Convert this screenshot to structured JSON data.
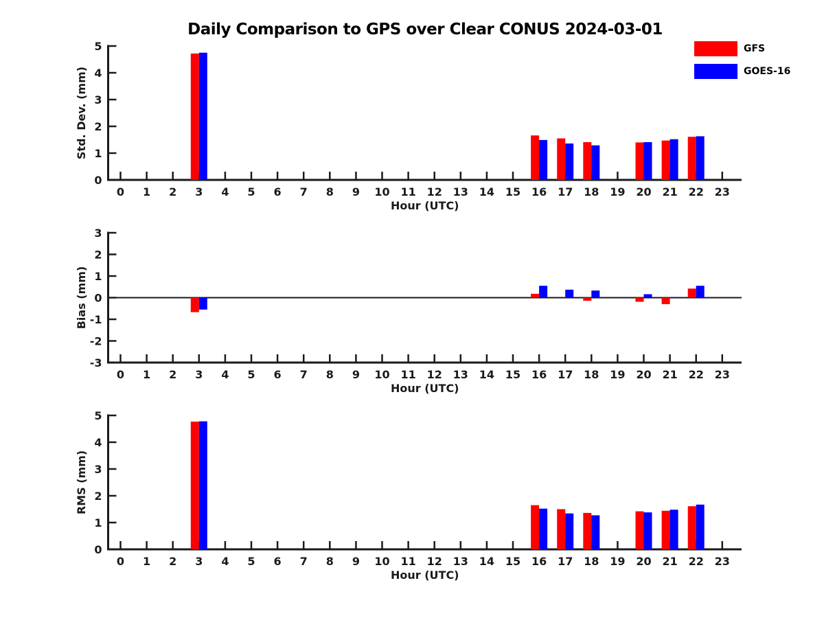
{
  "title": "Daily Comparison to GPS over Clear CONUS 2024-03-01",
  "legend": {
    "items": [
      {
        "label": "GFS",
        "color": "#ff0000"
      },
      {
        "label": "GOES-16",
        "color": "#0000ff"
      }
    ]
  },
  "colors": {
    "gfs": "#ff0000",
    "goes16": "#0000ff",
    "axis": "#1a1a1a"
  },
  "chart_data": [
    {
      "id": "stddev",
      "type": "bar",
      "title": "",
      "xlabel": "Hour (UTC)",
      "ylabel": "Std. Dev. (mm)",
      "ylim": [
        0,
        5
      ],
      "y_ticks": [
        "0",
        "1",
        "2",
        "3",
        "4",
        "5"
      ],
      "grid": false,
      "categories": [
        "0",
        "1",
        "2",
        "3",
        "4",
        "5",
        "6",
        "7",
        "8",
        "9",
        "10",
        "11",
        "12",
        "13",
        "14",
        "15",
        "16",
        "17",
        "18",
        "19",
        "20",
        "21",
        "22",
        "23"
      ],
      "series": [
        {
          "name": "GFS",
          "color": "#ff0000",
          "values": [
            0,
            0,
            0,
            4.72,
            0,
            0,
            0,
            0,
            0,
            0,
            0,
            0,
            0,
            0,
            0,
            0,
            1.66,
            1.55,
            1.41,
            0,
            1.4,
            1.47,
            1.61,
            0
          ]
        },
        {
          "name": "GOES-16",
          "color": "#0000ff",
          "values": [
            0,
            0,
            0,
            4.75,
            0,
            0,
            0,
            0,
            0,
            0,
            0,
            0,
            0,
            0,
            0,
            0,
            1.49,
            1.36,
            1.29,
            0,
            1.41,
            1.52,
            1.63,
            0
          ]
        }
      ]
    },
    {
      "id": "bias",
      "type": "bar",
      "title": "",
      "xlabel": "Hour (UTC)",
      "ylabel": "Bias (mm)",
      "ylim": [
        -3,
        3
      ],
      "y_ticks": [
        "-3",
        "-2",
        "-1",
        "0",
        "1",
        "2",
        "3"
      ],
      "zero_line": true,
      "grid": false,
      "categories": [
        "0",
        "1",
        "2",
        "3",
        "4",
        "5",
        "6",
        "7",
        "8",
        "9",
        "10",
        "11",
        "12",
        "13",
        "14",
        "15",
        "16",
        "17",
        "18",
        "19",
        "20",
        "21",
        "22",
        "23"
      ],
      "series": [
        {
          "name": "GFS",
          "color": "#ff0000",
          "values": [
            0,
            0,
            0,
            -0.67,
            0,
            0,
            0,
            0,
            0,
            0,
            0,
            0,
            0,
            0,
            0,
            0,
            0.18,
            0,
            -0.14,
            0,
            -0.19,
            -0.3,
            0.42,
            0
          ]
        },
        {
          "name": "GOES-16",
          "color": "#0000ff",
          "values": [
            0,
            0,
            0,
            -0.55,
            0,
            0,
            0,
            0,
            0,
            0,
            0,
            0,
            0,
            0,
            0,
            0,
            0.55,
            0.37,
            0.33,
            0,
            0.16,
            0.03,
            0.55,
            0
          ]
        }
      ]
    },
    {
      "id": "rms",
      "type": "bar",
      "title": "",
      "xlabel": "Hour (UTC)",
      "ylabel": "RMS (mm)",
      "ylim": [
        0,
        5
      ],
      "y_ticks": [
        "0",
        "1",
        "2",
        "3",
        "4",
        "5"
      ],
      "grid": false,
      "categories": [
        "0",
        "1",
        "2",
        "3",
        "4",
        "5",
        "6",
        "7",
        "8",
        "9",
        "10",
        "11",
        "12",
        "13",
        "14",
        "15",
        "16",
        "17",
        "18",
        "19",
        "20",
        "21",
        "22",
        "23"
      ],
      "series": [
        {
          "name": "GFS",
          "color": "#ff0000",
          "values": [
            0,
            0,
            0,
            4.77,
            0,
            0,
            0,
            0,
            0,
            0,
            0,
            0,
            0,
            0,
            0,
            0,
            1.65,
            1.5,
            1.36,
            0,
            1.42,
            1.44,
            1.61,
            0
          ]
        },
        {
          "name": "GOES-16",
          "color": "#0000ff",
          "values": [
            0,
            0,
            0,
            4.78,
            0,
            0,
            0,
            0,
            0,
            0,
            0,
            0,
            0,
            0,
            0,
            0,
            1.52,
            1.34,
            1.27,
            0,
            1.38,
            1.48,
            1.67,
            0
          ]
        }
      ]
    }
  ]
}
